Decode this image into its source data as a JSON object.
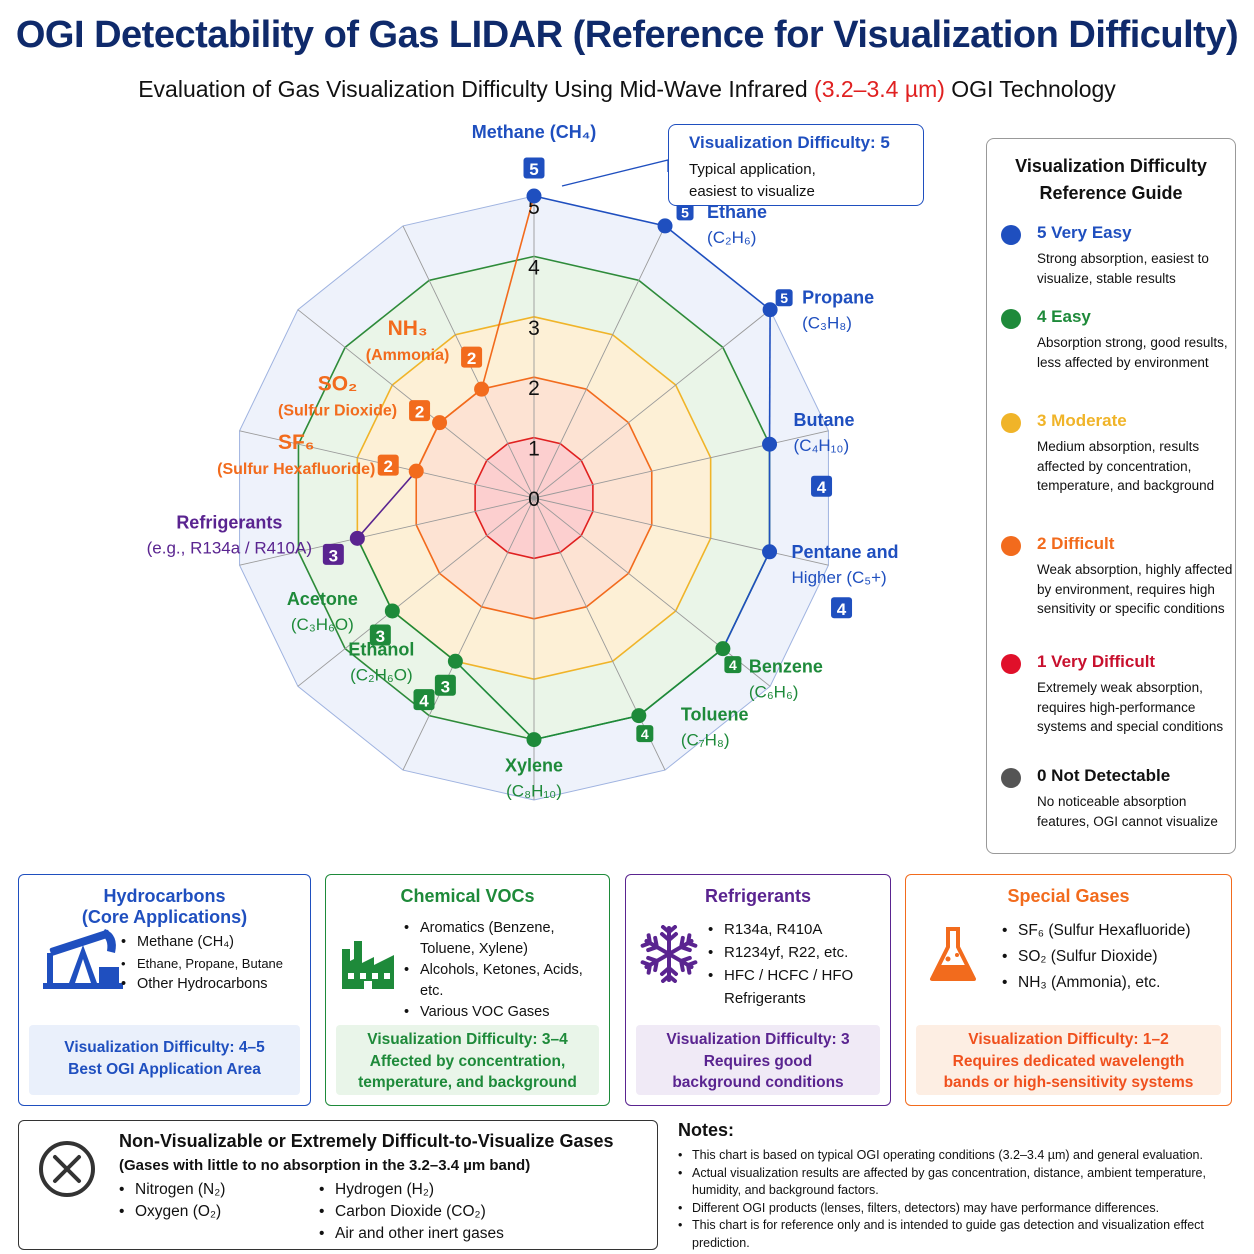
{
  "header": {
    "title": "OGI Detectability of Gas LIDAR (Reference for Visualization Difficulty)",
    "subtitle_pre": "Evaluation of Gas Visualization Difficulty Using Mid-Wave Infrared",
    "subtitle_band": "(3.2–3.4 µm)",
    "subtitle_post": "OGI Technology"
  },
  "chart_data": {
    "type": "radar",
    "rlim": [
      0,
      5
    ],
    "ticks": [
      "0",
      "1",
      "2",
      "3",
      "4",
      "5"
    ],
    "axes": [
      {
        "name": "Methane (CH₄)",
        "sub": "",
        "value": 5,
        "color": "#1f4fbf"
      },
      {
        "name": "Ethane",
        "sub": "(C₂H₆)",
        "value": 5,
        "color": "#1f4fbf"
      },
      {
        "name": "Propane",
        "sub": "(C₃H₈)",
        "value": 5,
        "color": "#1f4fbf"
      },
      {
        "name": "Butane",
        "sub": "(C₄H₁₀)",
        "value": 4,
        "color": "#1f4fbf"
      },
      {
        "name": "Pentane and",
        "sub": "Higher (C₅+)",
        "value": 4,
        "color": "#1f4fbf"
      },
      {
        "name": "Benzene",
        "sub": "(C₆H₆)",
        "value": 4,
        "color": "#1e8a3a"
      },
      {
        "name": "Toluene",
        "sub": "(C₇H₈)",
        "value": 4,
        "color": "#1e8a3a"
      },
      {
        "name": "Xylene",
        "sub": "(C₈H₁₀)",
        "value": 4,
        "color": "#1e8a3a"
      },
      {
        "name": "Ethanol",
        "sub": "(C₂H₆O)",
        "value": 3,
        "color": "#1e8a3a"
      },
      {
        "name": "Acetone",
        "sub": "(C₃H₆O)",
        "value": 3,
        "color": "#1e8a3a"
      },
      {
        "name": "Refrigerants",
        "sub": "(e.g., R134a / R410A)",
        "value": 3,
        "color": "#5a2490"
      },
      {
        "name": "SF₆",
        "sub": "(Sulfur Hexafluoride)",
        "value": 2,
        "color": "#f26b1d"
      },
      {
        "name": "SO₂",
        "sub": "(Sulfur Dioxide)",
        "value": 2,
        "color": "#f26b1d"
      },
      {
        "name": "NH₃",
        "sub": "(Ammonia)",
        "value": 2,
        "color": "#f26b1d"
      }
    ],
    "zone_colors": {
      "5": "#eef2fb",
      "4": "#eaf5e8",
      "3": "#fdf0d6",
      "2": "#fde3d3",
      "1": "#fccfcf"
    },
    "ring_colors": {
      "5": "#9fb3e0",
      "4": "#2e8b3a",
      "3": "#f0b429",
      "2": "#f26b1d",
      "1": "#e02020"
    }
  },
  "callout": {
    "heading": "Visualization Difficulty: 5",
    "line1": "Typical application,",
    "line2": "easiest to visualize"
  },
  "legend": {
    "title1": "Visualization Difficulty",
    "title2": "Reference Guide",
    "items": [
      {
        "label": "5 Very Easy",
        "color": "#1f4fbf",
        "desc": "Strong absorption, easiest to visualize, stable results"
      },
      {
        "label": "4 Easy",
        "color": "#1e8a3a",
        "desc": "Absorption strong, good results, less affected by environment"
      },
      {
        "label": "3 Moderate",
        "color": "#f0b429",
        "desc": "Medium absorption, results affected by concentration, temperature, and background"
      },
      {
        "label": "2 Difficult",
        "color": "#f26b1d",
        "desc": "Weak absorption, highly affected by environment, requires high sensitivity or specific conditions"
      },
      {
        "label": "1 Very Difficult",
        "color": "#e0102a",
        "desc": "Extremely weak absorption, requires high-performance systems and special conditions"
      },
      {
        "label": "0 Not Detectable",
        "color": "#555555",
        "desc": "No noticeable absorption features, OGI cannot visualize"
      }
    ]
  },
  "categories": [
    {
      "title1": "Hydrocarbons",
      "title2": "(Core Applications)",
      "color": "#1f4fbf",
      "icon": "pump-jack-icon",
      "items": [
        "Methane (CH₄)",
        "Ethane, Propane, Butane",
        "Other Hydrocarbons"
      ],
      "foot1": "Visualization Difficulty: 4–5",
      "foot2": "Best OGI Application Area",
      "foot3": ""
    },
    {
      "title1": "Chemical VOCs",
      "title2": "",
      "color": "#1e8a3a",
      "icon": "factory-icon",
      "items": [
        "Aromatics (Benzene, Toluene, Xylene)",
        "Alcohols, Ketones, Acids, etc.",
        "Various VOC Gases"
      ],
      "foot1": "Visualization Difficulty: 3–4",
      "foot2": "Affected by concentration,",
      "foot3": "temperature, and background"
    },
    {
      "title1": "Refrigerants",
      "title2": "",
      "color": "#5a2490",
      "icon": "snowflake-icon",
      "items": [
        "R134a, R410A",
        "R1234yf, R22, etc.",
        "HFC / HCFC / HFO Refrigerants"
      ],
      "foot1": "Visualization Difficulty: 3",
      "foot2": "Requires good",
      "foot3": "background conditions"
    },
    {
      "title1": "Special Gases",
      "title2": "",
      "color": "#f26b1d",
      "icon": "flask-icon",
      "items": [
        "SF₆ (Sulfur Hexafluoride)",
        "SO₂ (Sulfur Dioxide)",
        "NH₃ (Ammonia), etc."
      ],
      "foot1": "Visualization Difficulty: 1–2",
      "foot2": "Requires dedicated wavelength",
      "foot3": "bands or high-sensitivity systems"
    }
  ],
  "nonvis": {
    "title": "Non-Visualizable or Extremely Difficult-to-Visualize Gases",
    "subtitle": "(Gases with little to no absorption in the 3.2–3.4 µm band)",
    "col1": [
      "Nitrogen (N₂)",
      "Oxygen (O₂)"
    ],
    "col2": [
      "Hydrogen (H₂)",
      "Carbon Dioxide (CO₂)",
      "Air and other inert gases"
    ]
  },
  "notes": {
    "title": "Notes:",
    "items": [
      "This chart is based on typical OGI operating conditions (3.2–3.4 µm) and general evaluation.",
      "Actual visualization results are affected by gas concentration, distance, ambient temperature, humidity, and background factors.",
      "Different OGI products (lenses, filters, detectors) may have performance differences.",
      "This chart is for reference only and is intended to guide gas detection and visualization effect prediction."
    ]
  }
}
